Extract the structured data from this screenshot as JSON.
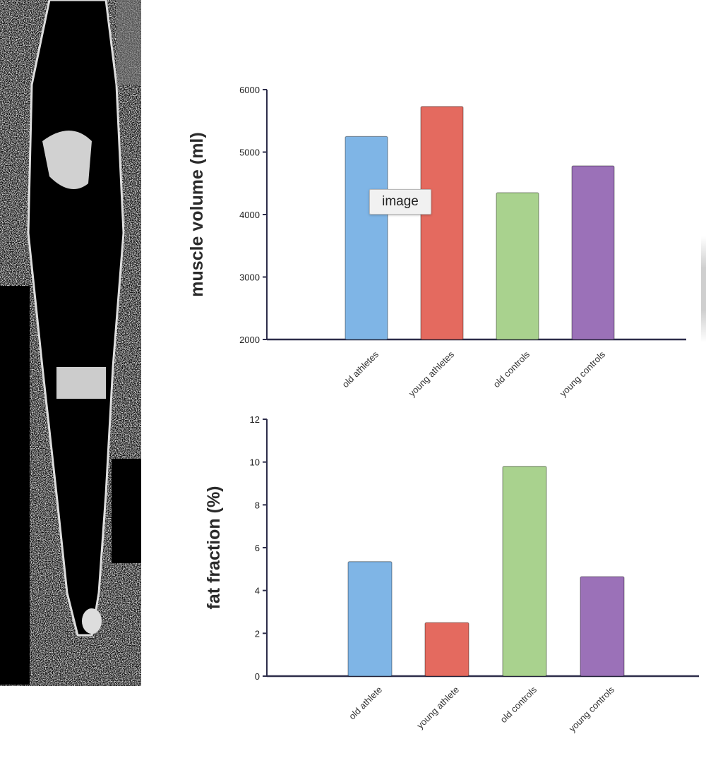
{
  "tooltip": {
    "text": "image"
  },
  "colors": {
    "blue": "#7fb5e6",
    "red": "#e46a5f",
    "green": "#a9d28e",
    "purple": "#9b71b8",
    "axis": "#2d2d4a"
  },
  "chart_data": [
    {
      "type": "bar",
      "title": "",
      "xlabel": "",
      "ylabel": "muscle volume (ml)",
      "ylim": [
        2000,
        6000
      ],
      "yticks": [
        2000,
        3000,
        4000,
        5000,
        6000
      ],
      "ytick_labels": [
        "2000",
        "3000",
        "4000",
        "5000",
        "6000"
      ],
      "grid": false,
      "categories": [
        "old athletes",
        "young athletes",
        "old controls",
        "young controls"
      ],
      "values": [
        5250,
        5730,
        4350,
        4780
      ],
      "bar_colors": [
        "#7fb5e6",
        "#e46a5f",
        "#a9d28e",
        "#9b71b8"
      ]
    },
    {
      "type": "bar",
      "title": "",
      "xlabel": "",
      "ylabel": "fat fraction (%)",
      "ylim": [
        0,
        12
      ],
      "yticks": [
        0,
        2,
        4,
        6,
        8,
        10,
        12
      ],
      "ytick_labels": [
        "0",
        "2",
        "4",
        "6",
        "8",
        "10",
        "12"
      ],
      "grid": false,
      "categories": [
        "old athlete",
        "young athlete",
        "old controls",
        "young controls"
      ],
      "values": [
        5.35,
        2.5,
        9.8,
        4.65
      ],
      "bar_colors": [
        "#7fb5e6",
        "#e46a5f",
        "#a9d28e",
        "#9b71b8"
      ]
    }
  ]
}
